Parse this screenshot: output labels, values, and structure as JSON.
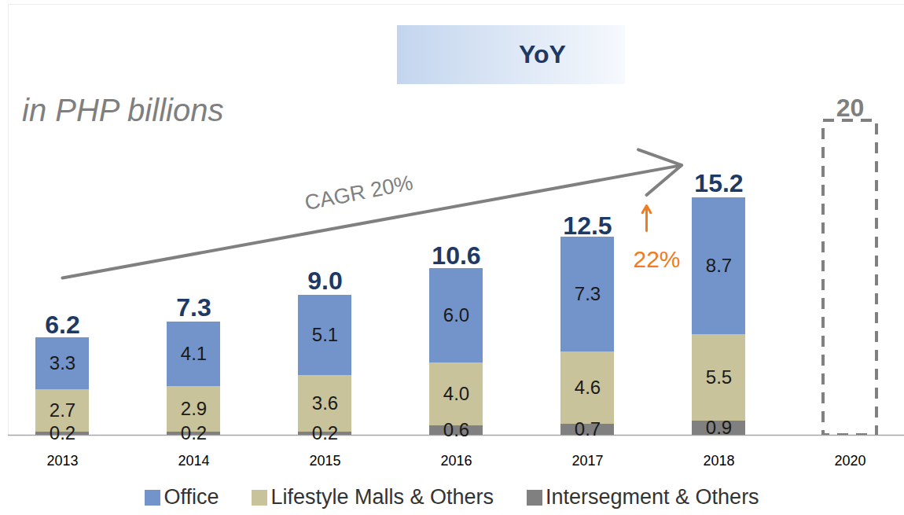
{
  "chart_data": {
    "type": "bar",
    "stacked": true,
    "title": "YoY",
    "subtitle": "in PHP billions",
    "categories": [
      "2013",
      "2014",
      "2015",
      "2016",
      "2017",
      "2018",
      "2020"
    ],
    "series": [
      {
        "name": "Office",
        "color": "#7393cb",
        "values": [
          3.3,
          4.1,
          5.1,
          6.0,
          7.3,
          8.7,
          null
        ],
        "value_labels": [
          "3.3",
          "4.1",
          "5.1",
          "6.0",
          "7.3",
          "8.7",
          null
        ]
      },
      {
        "name": "Lifestyle Malls & Others",
        "color": "#c9c39b",
        "values": [
          2.7,
          2.9,
          3.6,
          4.0,
          4.6,
          5.5,
          null
        ],
        "value_labels": [
          "2.7",
          "2.9",
          "3.6",
          "4.0",
          "4.6",
          "5.5",
          null
        ]
      },
      {
        "name": "Intersegment & Others",
        "color": "#808080",
        "values": [
          0.2,
          0.2,
          0.2,
          0.6,
          0.7,
          0.9,
          null
        ],
        "value_labels": [
          "0.2",
          "0.2",
          "0.2",
          "0.6",
          "0.7",
          "0.9",
          null
        ]
      }
    ],
    "totals": {
      "values": [
        6.2,
        7.3,
        9.0,
        10.6,
        12.5,
        15.2,
        20
      ],
      "value_labels": [
        "6.2",
        "7.3",
        "9.0",
        "10.6",
        "12.5",
        "15.2",
        "20"
      ]
    },
    "annotations": [
      {
        "text": "CAGR 20%",
        "from": "2013",
        "to": "2018"
      },
      {
        "text": "22%",
        "from": "2017",
        "to": "2018"
      }
    ],
    "ylim": [
      0,
      27.4
    ],
    "yticks": [
      0
    ],
    "grid": false,
    "data_labels": true,
    "tick_labels": "x",
    "legend": "bottom"
  }
}
